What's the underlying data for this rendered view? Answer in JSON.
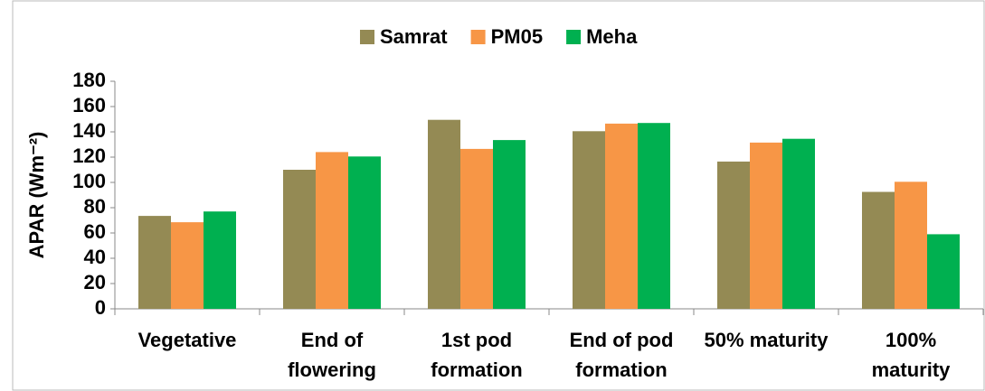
{
  "chart_data": {
    "type": "bar",
    "categories": [
      "Vegetative",
      "End of\nflowering",
      "1st  pod\nformation",
      "End of pod\nformation",
      "50% maturity",
      "100%\nmaturity"
    ],
    "series": [
      {
        "name": "Samrat",
        "color": "#948a54",
        "values": [
          73.5,
          110,
          149.5,
          140.5,
          116.5,
          92.5
        ]
      },
      {
        "name": "PM05",
        "color": "#f79646",
        "values": [
          68.5,
          124,
          126.5,
          146.5,
          131.5,
          100.5
        ]
      },
      {
        "name": "Meha",
        "color": "#00b050",
        "values": [
          77,
          120.5,
          133.5,
          147,
          134.5,
          59
        ]
      }
    ],
    "ylabel": "APAR (Wm⁻²)",
    "ylim": [
      0,
      180
    ],
    "yticks": [
      0,
      20,
      40,
      60,
      80,
      100,
      120,
      140,
      160,
      180
    ],
    "grid": false,
    "legend": "top"
  }
}
